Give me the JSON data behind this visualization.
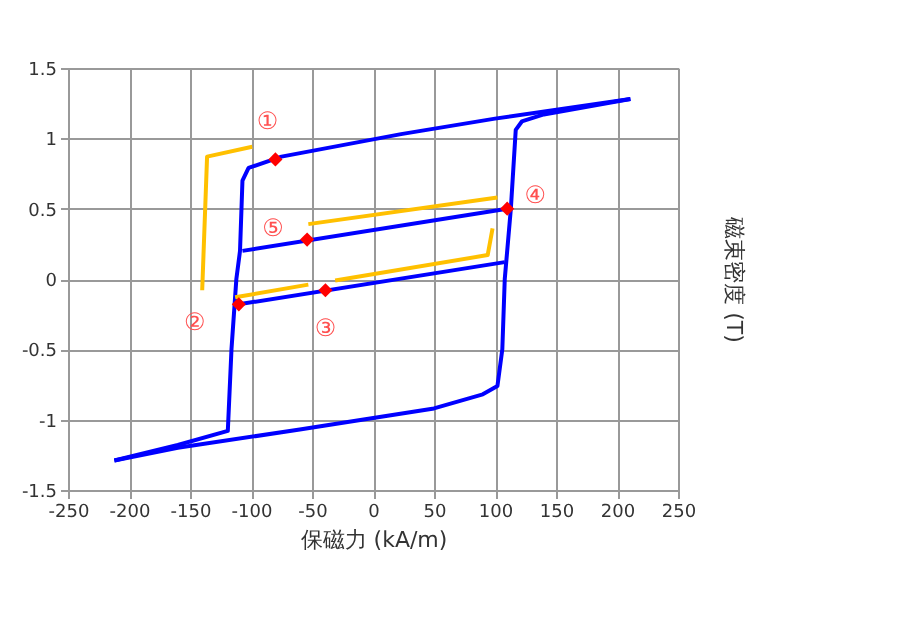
{
  "chart_data": {
    "type": "line",
    "xlabel": "保磁力 (kA/m)",
    "ylabel": "磁束密度 (T)",
    "xlim": [
      -250,
      250
    ],
    "xticks": [
      -250,
      -200,
      -150,
      -100,
      -50,
      0,
      50,
      100,
      150,
      200,
      250
    ],
    "ylim": [
      -1.5,
      1.5
    ],
    "yticks": [
      -1.5,
      -1,
      -0.5,
      0,
      0.5,
      1,
      1.5
    ],
    "grid": true,
    "line_style": "solid",
    "series": [
      {
        "color": "#0000ff",
        "x": [
          -212,
          -160,
          -60,
          -9,
          50,
          90,
          102,
          106,
          108,
          113,
          117,
          122,
          140,
          211
        ],
        "values": [
          -1.29,
          -1.2,
          -1.07,
          -1.0,
          -0.92,
          -0.82,
          -0.76,
          -0.5,
          0,
          0.5,
          1.06,
          1.12,
          1.17,
          1.28
        ]
      },
      {
        "color": "#0000ff",
        "x": [
          211,
          100,
          23,
          -75,
          -102,
          -107,
          -109,
          -112,
          -116,
          -119,
          -160,
          -212
        ],
        "values": [
          1.28,
          1.14,
          1.03,
          0.87,
          0.79,
          0.7,
          0.2,
          0,
          -0.5,
          -1.08,
          -1.18,
          -1.29
        ]
      },
      {
        "color": "#0000ff",
        "x": [
          -110,
          108
        ],
        "values": [
          -0.18,
          0.12
        ]
      },
      {
        "color": "#0000ff",
        "x": [
          110,
          -107
        ],
        "values": [
          0.5,
          0.2
        ]
      },
      {
        "color": "#ffc000",
        "x": [
          -99,
          -136,
          -140
        ],
        "values": [
          0.94,
          0.87,
          -0.08
        ]
      },
      {
        "color": "#ffc000",
        "x": [
          -113,
          -53
        ],
        "values": [
          -0.13,
          -0.04
        ]
      },
      {
        "color": "#ffc000",
        "x": [
          -31,
          94,
          98
        ],
        "values": [
          -0.01,
          0.17,
          0.36
        ]
      },
      {
        "color": "#ffc000",
        "x": [
          102,
          -53
        ],
        "values": [
          0.58,
          0.39
        ]
      },
      {
        "type": "scatter",
        "color": "#ff0000",
        "marker": "diamond",
        "x": [
          -80,
          -110,
          -39,
          110,
          -54
        ],
        "values": [
          0.85,
          -0.18,
          -0.08,
          0.5,
          0.28
        ]
      }
    ],
    "annotations": [
      {
        "text": "①",
        "x": -80,
        "y": 0.85
      },
      {
        "text": "②",
        "x": -110,
        "y": -0.18
      },
      {
        "text": "③",
        "x": -39,
        "y": -0.08
      },
      {
        "text": "④",
        "x": 110,
        "y": 0.5
      },
      {
        "text": "⑤",
        "x": -54,
        "y": 0.28
      }
    ]
  }
}
